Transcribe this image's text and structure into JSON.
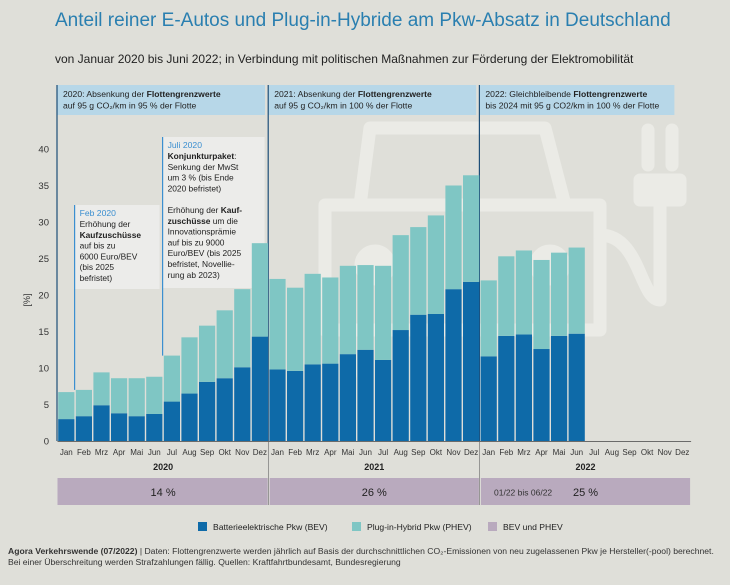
{
  "title": "Anteil reiner E-Autos und Plug-in-Hybride am Pkw-Absatz in Deutschland",
  "subtitle": "von Januar 2020 bis Juni 2022; in Verbindung mit politischen Maßnahmen zur Förderung der Elektromobilität",
  "chart_data": {
    "type": "bar",
    "stacked": true,
    "ylabel": "[%]",
    "ylim": [
      0,
      40
    ],
    "yticks": [
      0,
      5,
      10,
      15,
      20,
      25,
      30,
      35,
      40
    ],
    "grid": false,
    "months": [
      "Jan",
      "Feb",
      "Mrz",
      "Apr",
      "Mai",
      "Jun",
      "Jul",
      "Aug",
      "Sep",
      "Okt",
      "Nov",
      "Dez"
    ],
    "years": [
      "2020",
      "2021",
      "2022"
    ],
    "series": [
      {
        "name": "Batterieelektrische Pkw (BEV)",
        "color": "#0e6aa8",
        "values": [
          3.0,
          3.4,
          4.9,
          3.8,
          3.4,
          3.7,
          5.4,
          6.5,
          8.1,
          8.6,
          10.1,
          14.3,
          9.8,
          9.6,
          10.5,
          10.6,
          11.9,
          12.5,
          11.1,
          15.2,
          17.3,
          17.4,
          20.8,
          21.8,
          11.6,
          14.4,
          14.6,
          12.6,
          14.4,
          14.7
        ]
      },
      {
        "name": "Plug-in-Hybrid Pkw (PHEV)",
        "color": "#7fc6c4",
        "values": [
          3.7,
          3.6,
          4.5,
          4.8,
          5.2,
          5.1,
          6.3,
          7.7,
          7.7,
          9.3,
          10.7,
          12.8,
          12.4,
          11.4,
          12.4,
          11.8,
          12.1,
          11.6,
          12.9,
          13.0,
          12.0,
          13.5,
          14.2,
          14.6,
          10.4,
          10.9,
          11.5,
          12.2,
          11.4,
          11.8
        ]
      }
    ],
    "legend": [
      {
        "label": "Batterieelektrische Pkw (BEV)",
        "color": "#0e6aa8"
      },
      {
        "label": "Plug-in-Hybrid Pkw (PHEV)",
        "color": "#7fc6c4"
      },
      {
        "label": "BEV und PHEV",
        "color": "#b9aabe"
      }
    ],
    "year_totals": [
      {
        "year": "2020",
        "text": "14 %",
        "prefix": ""
      },
      {
        "year": "2021",
        "text": "26 %",
        "prefix": ""
      },
      {
        "year": "2022",
        "text": "25 %",
        "prefix": "01/22 bis 06/22"
      }
    ],
    "annotations": [
      {
        "month_index": 0,
        "style": "box",
        "lines": [
          [
            {
              "t": "2020: Absenkung der "
            },
            {
              "t": "Flottengrenzwerte",
              "b": true
            }
          ],
          [
            {
              "t": "auf 95 g CO₂/km  in 95 % der Flotte"
            }
          ]
        ]
      },
      {
        "month_index": 12,
        "style": "box",
        "lines": [
          [
            {
              "t": "2021: Absenkung der "
            },
            {
              "t": "Flottengrenzwerte",
              "b": true
            }
          ],
          [
            {
              "t": "auf 95 g CO₂/km in 100 % der Flotte"
            }
          ]
        ]
      },
      {
        "month_index": 24,
        "style": "box",
        "lines": [
          [
            {
              "t": "2022: Gleichbleibende "
            },
            {
              "t": "Flottengrenzwerte",
              "b": true
            }
          ],
          [
            {
              "t": "bis 2024 mit  95 g CO2/km in 100 % der Flotte"
            }
          ]
        ]
      },
      {
        "month_index": 1,
        "style": "note",
        "head": "Feb 2020",
        "lines": [
          [
            {
              "t": "Erhöhung der"
            }
          ],
          [
            {
              "t": "Kaufzuschüsse",
              "b": true
            }
          ],
          [
            {
              "t": "auf bis zu"
            }
          ],
          [
            {
              "t": "6000 Euro/BEV"
            }
          ],
          [
            {
              "t": "(bis 2025"
            }
          ],
          [
            {
              "t": "befristet)"
            }
          ]
        ]
      },
      {
        "month_index": 6,
        "style": "note",
        "head": "Juli 2020",
        "lines": [
          [
            {
              "t": "Konjunkturpaket",
              "b": true
            },
            {
              "t": ":"
            }
          ],
          [
            {
              "t": "Senkung der MwSt"
            }
          ],
          [
            {
              "t": "um 3 % (bis Ende"
            }
          ],
          [
            {
              "t": "2020 befristet)"
            }
          ],
          [
            {
              "t": " "
            }
          ],
          [
            {
              "t": "Erhöhung der "
            },
            {
              "t": "Kauf-",
              "b": true
            }
          ],
          [
            {
              "t": "zuschüsse",
              "b": true
            },
            {
              "t": " um die"
            }
          ],
          [
            {
              "t": "Innovationsprämie"
            }
          ],
          [
            {
              "t": "auf bis zu 9000"
            }
          ],
          [
            {
              "t": "Euro/BEV (bis 2025"
            }
          ],
          [
            {
              "t": "befristet, Novellie-"
            }
          ],
          [
            {
              "t": "rung ab 2023)"
            }
          ]
        ]
      }
    ]
  },
  "footer": {
    "source_bold": "Agora Verkehrswende (07/2022)",
    "text": " | Daten: Flottengrenzwerte werden jährlich auf Basis der durchschnittlichen CO₂-Emissionen von neu zugelassenen Pkw je Hersteller(-pool) berechnet. Bei einer Überschreitung werden Strafzahlungen fällig. Quellen: Kraftfahrtbundesamt, Bundesregierung"
  },
  "background_icon": "car-charging-plug-icon"
}
